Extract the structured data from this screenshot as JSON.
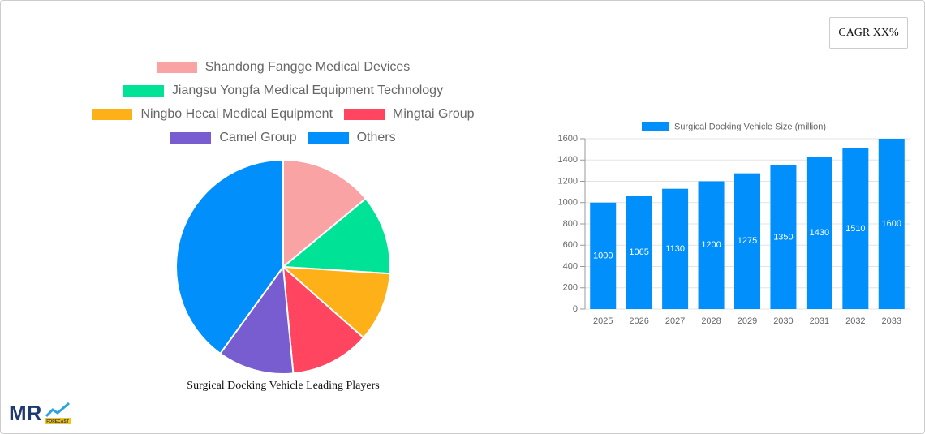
{
  "cagr_label": "CAGR XX%",
  "logo": {
    "text": "MR",
    "subtext": "FORECAST"
  },
  "chart_data": [
    {
      "type": "pie",
      "title": "Surgical Docking Vehicle Leading Players",
      "categories": [
        "Shandong Fangge Medical Devices",
        "Jiangsu Yongfa Medical Equipment Technology",
        "Ningbo Hecai Medical Equipment",
        "Mingtai Group",
        "Camel Group",
        "Others"
      ],
      "values": [
        14,
        12,
        10.5,
        12,
        11.5,
        40
      ],
      "colors": [
        "#f9a3a4",
        "#00e396",
        "#feb019",
        "#ff4560",
        "#775dd0",
        "#008ffb"
      ]
    },
    {
      "type": "bar",
      "categories": [
        "2025",
        "2026",
        "2027",
        "2028",
        "2029",
        "2030",
        "2031",
        "2032",
        "2033"
      ],
      "series": [
        {
          "name": "Surgical Docking Vehicle Size (million)",
          "color": "#008ffb",
          "values": [
            1000,
            1065,
            1130,
            1200,
            1275,
            1350,
            1430,
            1510,
            1600
          ]
        }
      ],
      "ylim": [
        0,
        1600
      ],
      "yticks": [
        0,
        200,
        400,
        600,
        800,
        1000,
        1200,
        1400,
        1600
      ],
      "grid": true
    }
  ]
}
